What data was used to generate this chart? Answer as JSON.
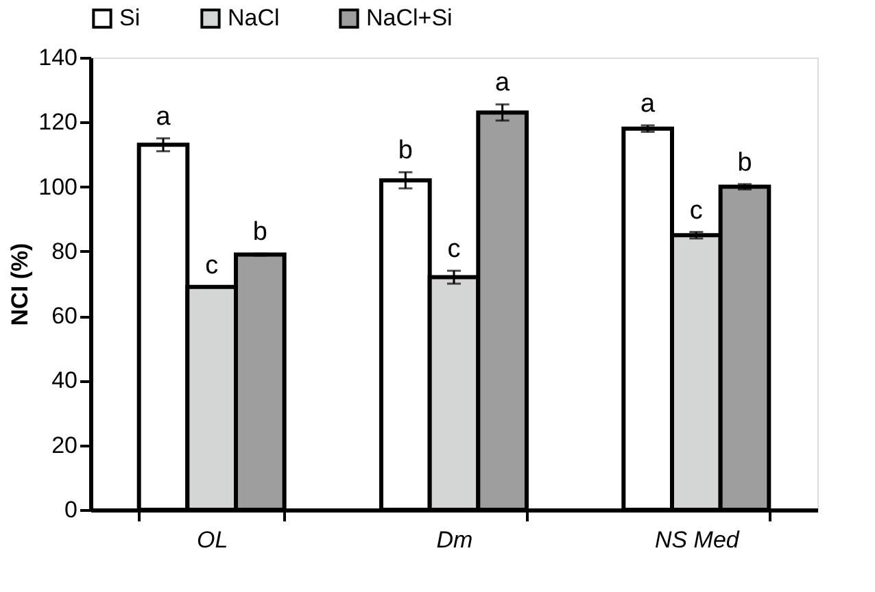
{
  "chart_data": {
    "type": "bar",
    "ylabel": "NCI (%)",
    "categories": [
      "OL",
      "Dm",
      "NS Med"
    ],
    "series": [
      {
        "name": "Si",
        "color": "#ffffff",
        "values": [
          113,
          102,
          118
        ],
        "errors": [
          2,
          2.5,
          1
        ],
        "value_labels": [
          "a",
          "b",
          "a"
        ]
      },
      {
        "name": "NaCl",
        "color": "#d4d6d5",
        "values": [
          69,
          72,
          85
        ],
        "errors": [
          null,
          2,
          1
        ],
        "value_labels": [
          "c",
          "c",
          "c"
        ]
      },
      {
        "name": "NaCl+Si",
        "color": "#9e9e9e",
        "values": [
          79,
          123,
          100
        ],
        "errors": [
          0.3,
          2.5,
          0.8
        ],
        "value_labels": [
          "b",
          "a",
          "b"
        ]
      }
    ],
    "ylim": [
      0,
      140
    ],
    "yticks": [
      0,
      20,
      40,
      60,
      80,
      100,
      120,
      140
    ],
    "grid": false,
    "legend": "top"
  }
}
